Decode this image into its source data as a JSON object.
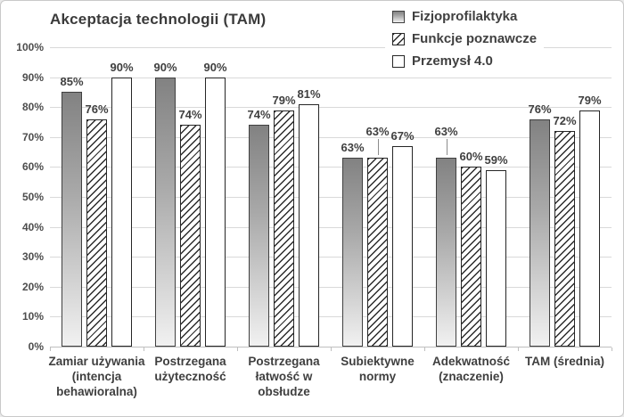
{
  "chart_data": {
    "type": "bar",
    "title": "Akceptacja technologii (TAM)",
    "categories": [
      {
        "label": "Zamiar używania (intencja behawioralna)",
        "lines": [
          "Zamiar używania",
          "(intencja",
          "behawioralna)"
        ]
      },
      {
        "label": "Postrzegana użyteczność",
        "lines": [
          "Postrzegana",
          "użyteczność"
        ]
      },
      {
        "label": "Postrzegana łatwość w obsłudze",
        "lines": [
          "Postrzegana",
          "łatwość w",
          "obsłudze"
        ]
      },
      {
        "label": "Subiektywne normy",
        "lines": [
          "Subiektywne",
          "normy"
        ]
      },
      {
        "label": "Adekwatność (znaczenie)",
        "lines": [
          "Adekwatność",
          "(znaczenie)"
        ]
      },
      {
        "label": "TAM (średnia)",
        "lines": [
          "TAM (średnia)"
        ]
      }
    ],
    "series": [
      {
        "name": "Fizjoprofilaktyka",
        "style": "gradient",
        "values": [
          85,
          90,
          74,
          63,
          63,
          76
        ]
      },
      {
        "name": "Funkcje poznawcze",
        "style": "hatch",
        "values": [
          76,
          74,
          79,
          63,
          60,
          72
        ]
      },
      {
        "name": "Przemysł 4.0",
        "style": "plain",
        "values": [
          90,
          90,
          81,
          67,
          59,
          79
        ]
      }
    ],
    "value_suffix": "%",
    "ylabel": "",
    "xlabel": "",
    "ylim": [
      0,
      100
    ],
    "ytick_step": 10,
    "ytick_labels": [
      "0%",
      "10%",
      "20%",
      "30%",
      "40%",
      "50%",
      "60%",
      "70%",
      "80%",
      "90%",
      "100%"
    ],
    "grid": true,
    "legend_position": "top-right",
    "raised_labels": [
      {
        "series": 1,
        "category": 3
      },
      {
        "series": 0,
        "category": 4
      }
    ],
    "colors": {
      "gradient_top": "#828282",
      "gradient_bottom": "#f1f1f1",
      "bar_border_dark": "#404040",
      "bar_border_black": "#262626",
      "hatch_line": "#2b2b2b",
      "plain_fill": "#ffffff",
      "gridline": "#d9d9d9",
      "axis_line": "#bfbfbf",
      "text": "#3f3f3f"
    }
  }
}
